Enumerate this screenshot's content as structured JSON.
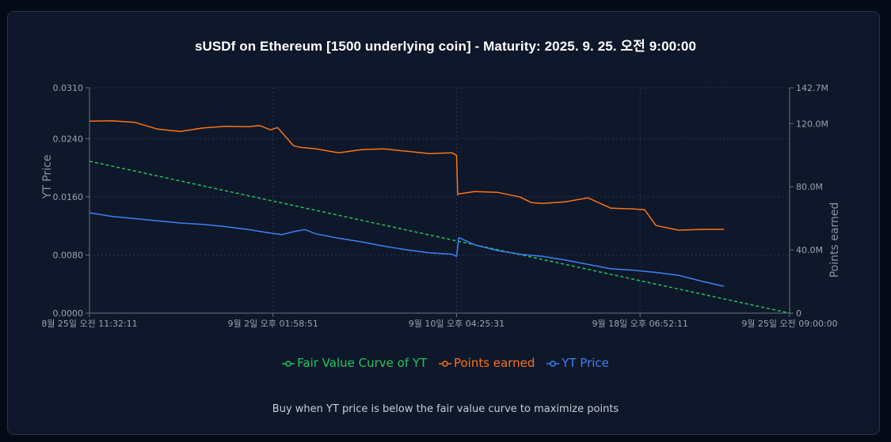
{
  "colors": {
    "fair_value": "#22c55e",
    "points": "#f97316",
    "yt_price": "#3b82f6",
    "grid": "#2a3a52",
    "axis": "#6b7280"
  },
  "caption": "Buy when YT price is below the fair value curve to maximize points",
  "chart_data": {
    "type": "line",
    "title": "sUSDf on Ethereum [1500 underlying coin] - Maturity: 2025. 9. 25. 오전 9:00:00",
    "ylabel": "YT Price",
    "y2label": "Points earned",
    "x_ticks": [
      "8월 25일 오전 11:32:11",
      "9월 2일 오후 01:58:51",
      "9월 10일 오후 04:25:31",
      "9월 18일 오후 06:52:11",
      "9월 25일 오전 09:00:00"
    ],
    "x_tick_days": [
      0,
      8.1,
      16.2,
      24.3,
      30.9
    ],
    "xlim_days": [
      0,
      30.9
    ],
    "ylim": [
      0,
      0.031
    ],
    "y_ticks": [
      "0.0000",
      "0.0080",
      "0.0160",
      "0.0240",
      "0.0310"
    ],
    "y_tick_values": [
      0,
      0.008,
      0.016,
      0.024,
      0.031
    ],
    "y2lim": [
      0,
      142.7
    ],
    "y2_ticks": [
      "0",
      "40.0M",
      "80.0M",
      "120.0M",
      "142.7M"
    ],
    "y2_tick_values": [
      0,
      40,
      80,
      120,
      142.7
    ],
    "grid": true,
    "legend_position": "bottom",
    "series": [
      {
        "name": "Fair Value Curve of YT",
        "axis": "left",
        "dashed": true,
        "x": [
          0,
          30.9
        ],
        "y": [
          0.0209,
          0
        ]
      },
      {
        "name": "Points earned",
        "axis": "right",
        "x": [
          0,
          1,
          2,
          3,
          4,
          5,
          6,
          7,
          7.5,
          8,
          8.3,
          9,
          9.3,
          10,
          11,
          12,
          13,
          14,
          15,
          16,
          16.2,
          16.25,
          16.3,
          17,
          18,
          19,
          19.5,
          20,
          20.5,
          21,
          22,
          23,
          24,
          24.5,
          25,
          26,
          27,
          28
        ],
        "y": [
          121.5,
          121.8,
          120.8,
          116.5,
          115.0,
          117.2,
          118.3,
          118.0,
          118.8,
          116.0,
          117.5,
          106.0,
          105.0,
          104.0,
          101.5,
          103.5,
          104.0,
          102.5,
          101.0,
          101.5,
          100.0,
          75.0,
          75.5,
          77.0,
          76.5,
          73.5,
          70.0,
          69.5,
          70.0,
          70.5,
          73.0,
          66.5,
          66.0,
          65.5,
          55.5,
          52.5,
          53.0,
          53.0
        ]
      },
      {
        "name": "YT Price",
        "axis": "left",
        "x": [
          0,
          1,
          2,
          3,
          4,
          5,
          6,
          7,
          8,
          8.5,
          9,
          9.5,
          10,
          11,
          12,
          13,
          14,
          15,
          16,
          16.2,
          16.3,
          17,
          18,
          19,
          20,
          21,
          22,
          23,
          24,
          25,
          26,
          27,
          28
        ],
        "y": [
          0.0138,
          0.0133,
          0.013,
          0.0127,
          0.0124,
          0.0122,
          0.0119,
          0.0115,
          0.011,
          0.0108,
          0.0112,
          0.0115,
          0.0109,
          0.0103,
          0.0098,
          0.0092,
          0.0087,
          0.0083,
          0.0081,
          0.0078,
          0.0104,
          0.0094,
          0.0086,
          0.0081,
          0.0078,
          0.0073,
          0.0067,
          0.0061,
          0.0059,
          0.0056,
          0.0052,
          0.0044,
          0.0037
        ]
      }
    ]
  }
}
